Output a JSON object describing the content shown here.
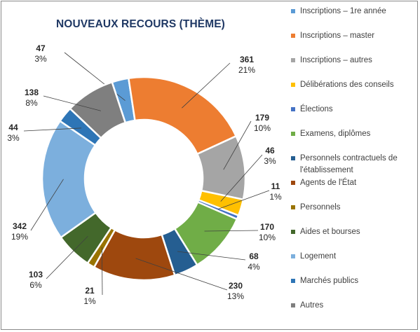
{
  "chart_data": {
    "type": "pie",
    "variant": "donut",
    "title": "NOUVEAUX RECOURS (THÈME)",
    "legend_position": "right",
    "start_angle_deg": -18.2,
    "slices": [
      {
        "label": "Inscriptions – 1re année",
        "value": 47,
        "percent": "3%",
        "color": "#5b9bd5"
      },
      {
        "label": "Inscriptions – master",
        "value": 361,
        "percent": "21%",
        "color": "#ed7d31"
      },
      {
        "label": "Inscriptions – autres",
        "value": 179,
        "percent": "10%",
        "color": "#a5a5a5"
      },
      {
        "label": "Délibérations des conseils",
        "value": 46,
        "percent": "3%",
        "color": "#ffc000"
      },
      {
        "label": "Élections",
        "value": 11,
        "percent": "1%",
        "color": "#4472c4"
      },
      {
        "label": "Examens, diplômes",
        "value": 170,
        "percent": "10%",
        "color": "#70ad47"
      },
      {
        "label": "Personnels contractuels de l'établissement",
        "value": 68,
        "percent": "4%",
        "color": "#255e91"
      },
      {
        "label": "Agents de l'État",
        "value": 230,
        "percent": "13%",
        "color": "#9e480e"
      },
      {
        "label": "Personnels",
        "value": 21,
        "percent": "1%",
        "color": "#997300"
      },
      {
        "label": "Aides et bourses",
        "value": 103,
        "percent": "6%",
        "color": "#43682b"
      },
      {
        "label": "Logement",
        "value": 342,
        "percent": "19%",
        "color": "#7cafdd"
      },
      {
        "label": "Marchés publics",
        "value": 44,
        "percent": "3%",
        "color": "#2e75b6"
      },
      {
        "label": "Autres",
        "value": 138,
        "percent": "8%",
        "color": "#7f7f7f"
      }
    ]
  }
}
